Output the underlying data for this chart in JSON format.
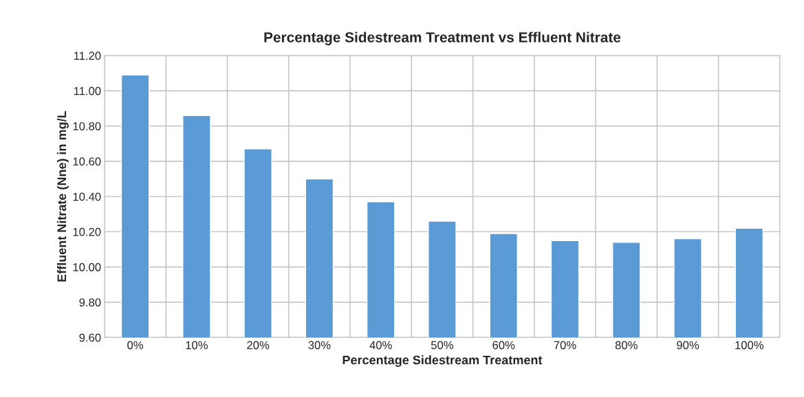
{
  "chart_data": {
    "type": "bar",
    "title": "Percentage Sidestream Treatment vs Effluent Nitrate",
    "xlabel": "Percentage Sidestream Treatment",
    "ylabel": "Effluent Nitrate (Nne) in mg/L",
    "categories": [
      "0%",
      "10%",
      "20%",
      "30%",
      "40%",
      "50%",
      "60%",
      "70%",
      "80%",
      "90%",
      "100%"
    ],
    "values": [
      11.09,
      10.86,
      10.67,
      10.5,
      10.37,
      10.26,
      10.19,
      10.15,
      10.14,
      10.16,
      10.22
    ],
    "color": "#5b9bd5",
    "ylim": [
      9.6,
      11.2
    ],
    "yticks": [
      {
        "value": 9.6,
        "label": "9.60"
      },
      {
        "value": 9.8,
        "label": "9.80"
      },
      {
        "value": 10.0,
        "label": "10.00"
      },
      {
        "value": 10.2,
        "label": "10.20"
      },
      {
        "value": 10.4,
        "label": "10.40"
      },
      {
        "value": 10.6,
        "label": "10.60"
      },
      {
        "value": 10.8,
        "label": "10.80"
      },
      {
        "value": 11.0,
        "label": "11.00"
      },
      {
        "value": 11.2,
        "label": "11.20"
      }
    ],
    "grid": true
  }
}
